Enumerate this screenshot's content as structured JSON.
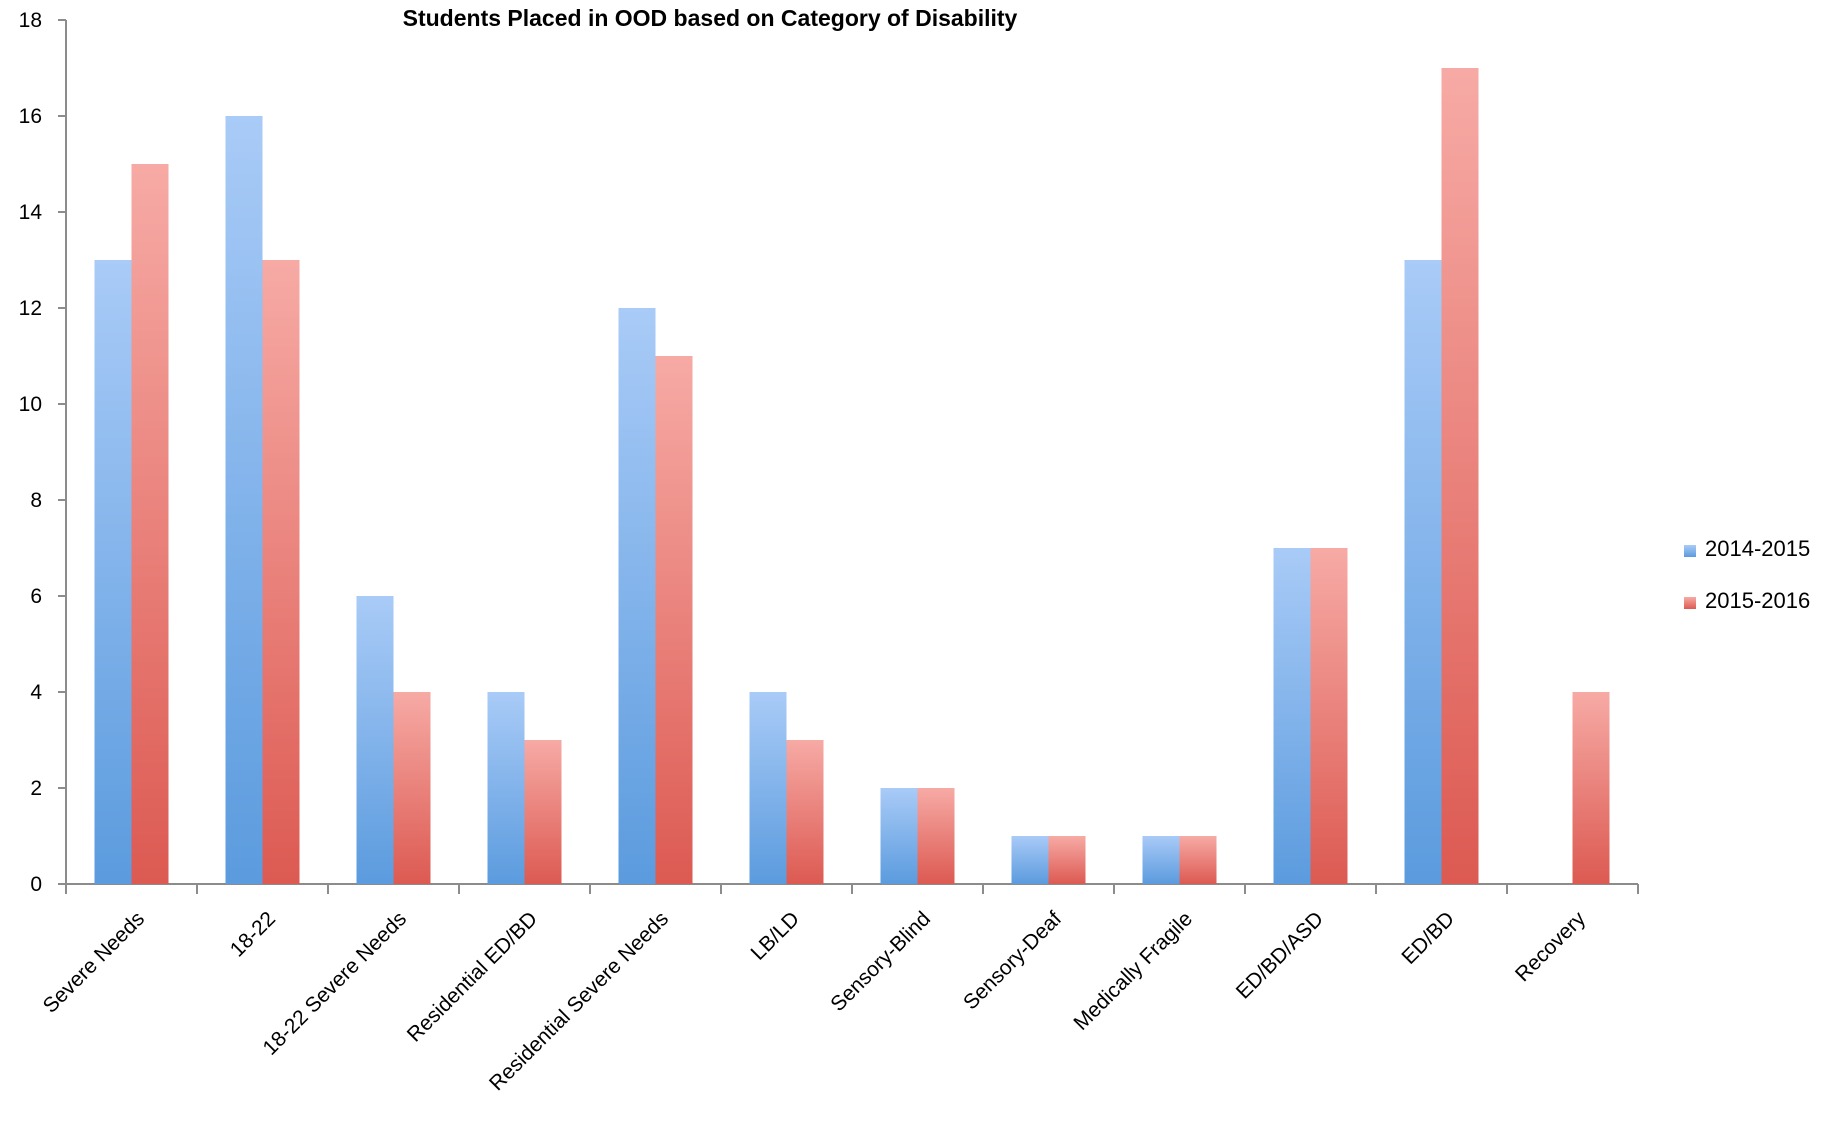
{
  "chart_data": {
    "type": "bar",
    "title": "Students  Placed in OOD based on Category of Disability",
    "xlabel": "",
    "ylabel": "",
    "ylim": [
      0,
      18
    ],
    "yticks": [
      0,
      2,
      4,
      6,
      8,
      10,
      12,
      14,
      16,
      18
    ],
    "grid": false,
    "legend_position": "right",
    "categories": [
      "Severe Needs",
      "18-22",
      "18-22 Severe Needs",
      "Residential ED/BD",
      "Residential Severe Needs",
      "LB/LD",
      "Sensory-Blind",
      "Sensory-Deaf",
      "Medically Fragile",
      "ED/BD/ASD",
      "ED/BD",
      "Recovery"
    ],
    "series": [
      {
        "name": "2014-2015",
        "color": "#5b9bde",
        "color_light": "#a9cbf7",
        "values": [
          13,
          16,
          6,
          4,
          12,
          4,
          2,
          1,
          1,
          7,
          13,
          0
        ]
      },
      {
        "name": "2015-2016",
        "color": "#dc5a52",
        "color_light": "#f7aaa5",
        "values": [
          15,
          13,
          4,
          3,
          11,
          3,
          2,
          1,
          1,
          7,
          17,
          4
        ]
      }
    ]
  }
}
